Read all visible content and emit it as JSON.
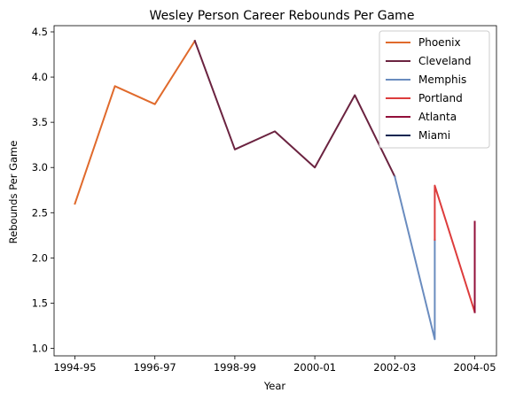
{
  "chart_data": {
    "type": "line",
    "title": "Wesley Person Career Rebounds Per Game",
    "xlabel": "Year",
    "ylabel": "Rebounds Per Game",
    "x_ticks": [
      "1994-95",
      "1996-97",
      "1998-99",
      "2000-01",
      "2002-03",
      "2004-05"
    ],
    "y_ticks": [
      "1.0",
      "1.5",
      "2.0",
      "2.5",
      "3.0",
      "3.5",
      "4.0",
      "4.5"
    ],
    "xlim": [
      "1994-95",
      "2004-05"
    ],
    "ylim": [
      1.0,
      4.5
    ],
    "grid": false,
    "legend_position": "top-right",
    "series": [
      {
        "name": "Phoenix",
        "color": "#e06a2c",
        "points": [
          [
            "1994-95",
            2.6
          ],
          [
            "1995-96",
            3.9
          ],
          [
            "1996-97",
            3.7
          ],
          [
            "1997-98",
            4.4
          ]
        ]
      },
      {
        "name": "Cleveland",
        "color": "#6b2340",
        "points": [
          [
            "1997-98",
            4.4
          ],
          [
            "1998-99",
            3.2
          ],
          [
            "1999-00",
            3.4
          ],
          [
            "2000-01",
            3.0
          ],
          [
            "2001-02",
            3.8
          ],
          [
            "2002-03",
            2.9
          ]
        ]
      },
      {
        "name": "Memphis",
        "color": "#6a8cbf",
        "points": [
          [
            "2002-03",
            2.9
          ],
          [
            "2003-04",
            1.1
          ],
          [
            "2003-04",
            2.2
          ]
        ]
      },
      {
        "name": "Portland",
        "color": "#dd3c3c",
        "points": [
          [
            "2003-04",
            2.2
          ],
          [
            "2003-04",
            2.8
          ],
          [
            "2004-05",
            1.4
          ]
        ]
      },
      {
        "name": "Atlanta",
        "color": "#920f3a",
        "points": [
          [
            "2004-05",
            1.4
          ],
          [
            "2004-05",
            2.4
          ]
        ]
      },
      {
        "name": "Miami",
        "color": "#0b2651",
        "points": []
      }
    ]
  }
}
